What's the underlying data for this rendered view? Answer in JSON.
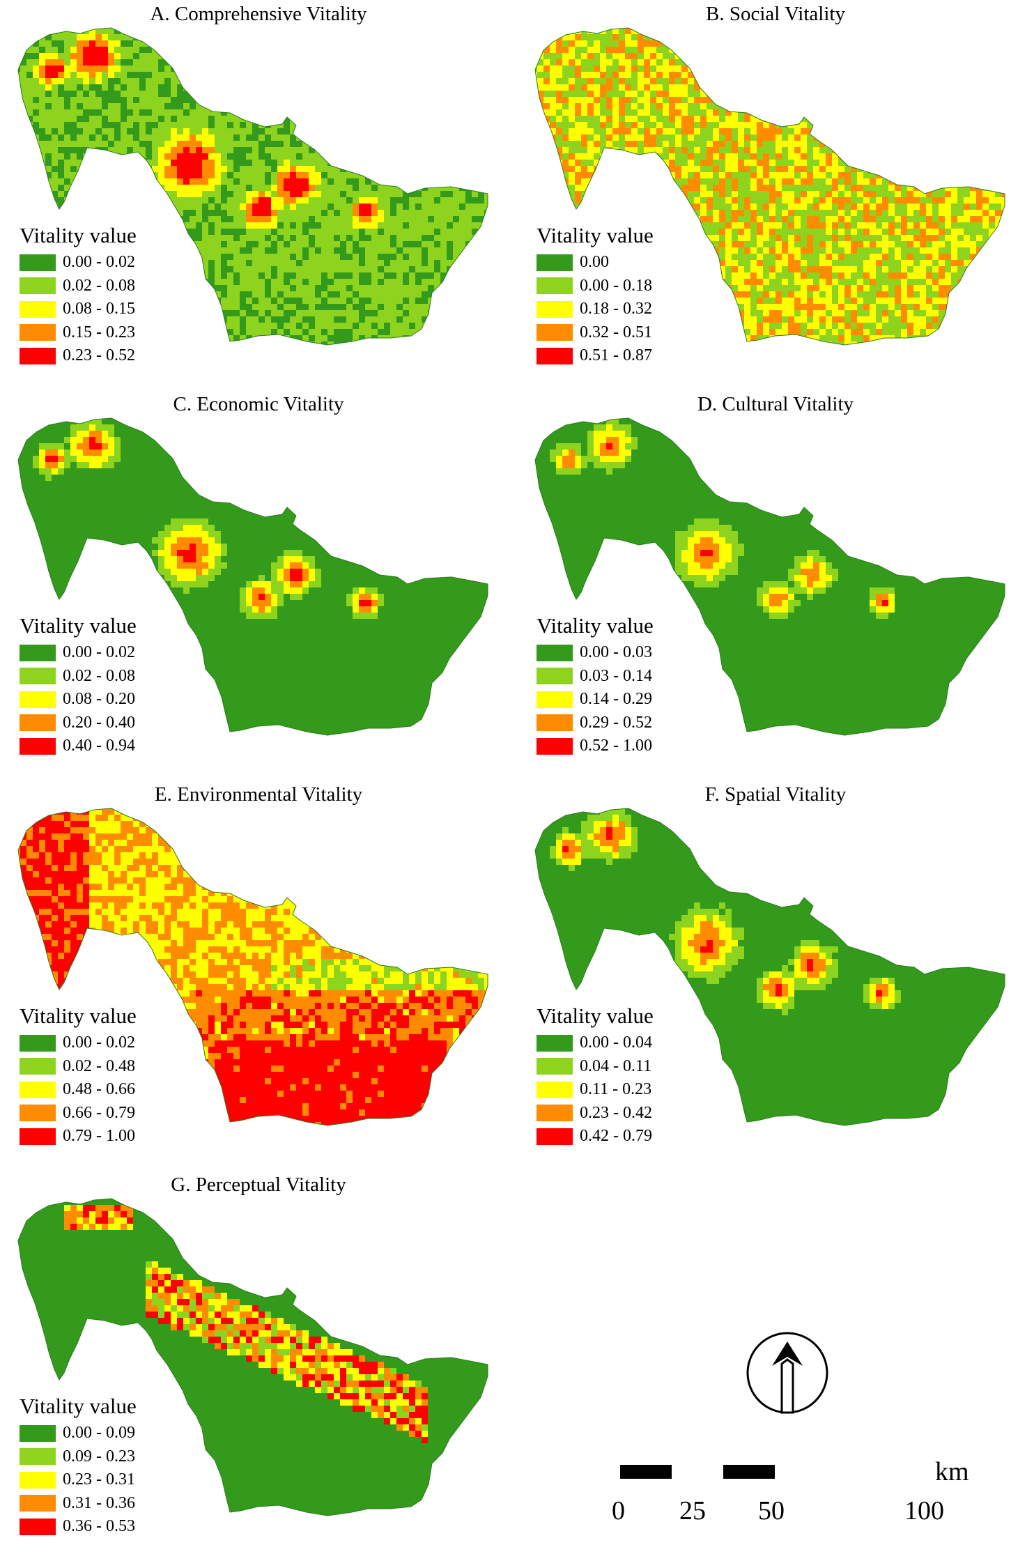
{
  "colors": [
    "#339a1c",
    "#8ed41e",
    "#ffff00",
    "#ff8c00",
    "#ff0000"
  ],
  "panels": [
    {
      "title": "A. Comprehensive Vitality",
      "legend_title": "Vitality value",
      "classes": [
        "0.00 - 0.02",
        "0.02 - 0.08",
        "0.08 - 0.15",
        "0.15 - 0.23",
        "0.23 - 0.52"
      ]
    },
    {
      "title": "B. Social Vitality",
      "legend_title": "Vitality value",
      "classes": [
        "0.00",
        "0.00 - 0.18",
        "0.18 - 0.32",
        "0.32 - 0.51",
        "0.51 - 0.87"
      ]
    },
    {
      "title": "C. Economic Vitality",
      "legend_title": "Vitality value",
      "classes": [
        "0.00 - 0.02",
        "0.02 - 0.08",
        "0.08 - 0.20",
        "0.20 - 0.40",
        "0.40 - 0.94"
      ]
    },
    {
      "title": "D. Cultural Vitality",
      "legend_title": "Vitality value",
      "classes": [
        "0.00 - 0.03",
        "0.03 - 0.14",
        "0.14 - 0.29",
        "0.29 - 0.52",
        "0.52 - 1.00"
      ]
    },
    {
      "title": "E. Environmental Vitality",
      "legend_title": "Vitality value",
      "classes": [
        "0.00 - 0.02",
        "0.02 - 0.48",
        "0.48 - 0.66",
        "0.66 - 0.79",
        "0.79 - 1.00"
      ]
    },
    {
      "title": "F. Spatial Vitality",
      "legend_title": "Vitality value",
      "classes": [
        "0.00 - 0.04",
        "0.04 - 0.11",
        "0.11 - 0.23",
        "0.23 - 0.42",
        "0.42 - 0.79"
      ]
    },
    {
      "title": "G. Perceptual Vitality",
      "legend_title": "Vitality value",
      "classes": [
        "0.00 - 0.09",
        "0.09 - 0.23",
        "0.23 - 0.31",
        "0.31 - 0.36",
        "0.36 - 0.53"
      ]
    }
  ],
  "north_arrow": {
    "icon": "north-arrow-icon"
  },
  "scale_bar": {
    "unit": "km",
    "ticks": [
      "0",
      "25",
      "50",
      "100"
    ]
  }
}
